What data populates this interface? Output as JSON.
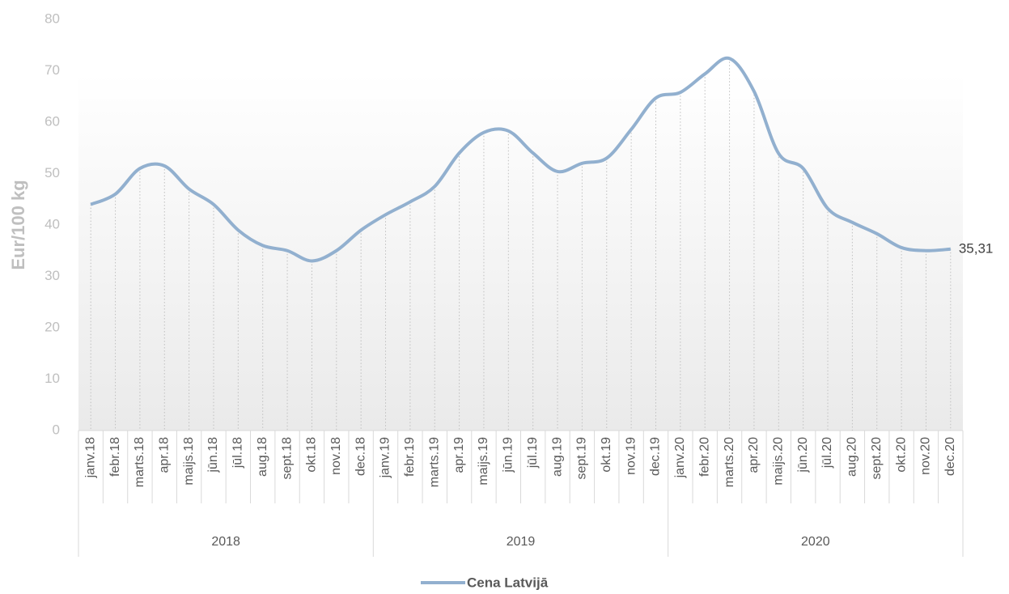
{
  "chart_data": {
    "type": "line",
    "y_label": "Eur/100 kg",
    "categories": [
      "janv.18",
      "febr.18",
      "marts.18",
      "apr.18",
      "maijs.18",
      "jūn.18",
      "jūl.18",
      "aug.18",
      "sept.18",
      "okt.18",
      "nov.18",
      "dec.18",
      "janv.19",
      "febr.19",
      "marts.19",
      "apr.19",
      "maijs.19",
      "jūn.19",
      "jūl.19",
      "aug.19",
      "sept.19",
      "okt.19",
      "nov.19",
      "dec.19",
      "janv.20",
      "febr.20",
      "marts.20",
      "apr.20",
      "maijs.20",
      "jūn.20",
      "jūl.20",
      "aug.20",
      "sept.20",
      "okt.20",
      "nov.20",
      "dec.20"
    ],
    "years": [
      "2018",
      "2019",
      "2020"
    ],
    "series": [
      {
        "name": "Cena Latvijā",
        "color": "#92b0cf",
        "values": [
          44,
          46,
          51,
          51.5,
          47,
          44,
          39,
          36,
          35,
          33,
          35,
          39,
          42,
          44.5,
          47.5,
          54,
          58,
          58.3,
          54,
          50.4,
          52,
          53,
          58.6,
          64.7,
          65.8,
          69.4,
          72.4,
          66,
          53.9,
          51,
          43.2,
          40.5,
          38.3,
          35.6,
          35,
          35.31
        ],
        "value_labels": [
          null,
          null,
          null,
          null,
          null,
          null,
          null,
          null,
          null,
          null,
          null,
          null,
          null,
          null,
          null,
          null,
          null,
          null,
          null,
          null,
          null,
          null,
          null,
          null,
          null,
          null,
          null,
          null,
          null,
          null,
          null,
          null,
          null,
          null,
          null,
          "35,31"
        ]
      }
    ],
    "ylim": [
      0,
      80
    ],
    "yticks": [
      0,
      10,
      20,
      30,
      40,
      50,
      60,
      70,
      80
    ],
    "drop_lines": true,
    "legend": "bottom"
  }
}
